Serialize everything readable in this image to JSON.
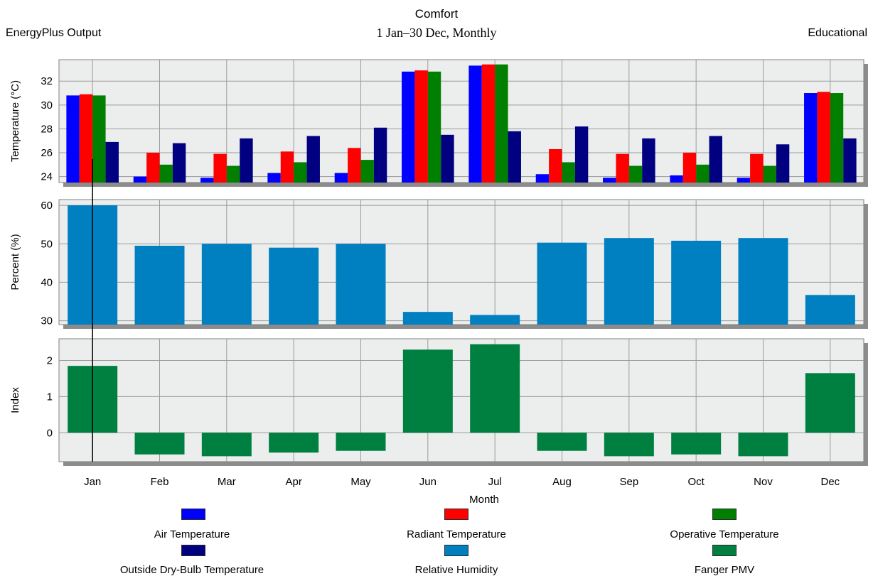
{
  "header": {
    "left": "EnergyPlus Output",
    "right": "Educational",
    "title": "Comfort",
    "subtitle": "1 Jan–30 Dec, Monthly"
  },
  "chart_data": [
    {
      "type": "bar",
      "ylabel": "Temperature (°C)",
      "ylim": [
        23.5,
        33.8
      ],
      "yticks": [
        24,
        26,
        28,
        30,
        32
      ],
      "grid": true,
      "categories": [
        "Jan",
        "Feb",
        "Mar",
        "Apr",
        "May",
        "Jun",
        "Jul",
        "Aug",
        "Sep",
        "Oct",
        "Nov",
        "Dec"
      ],
      "series": [
        {
          "name": "Air Temperature",
          "color": "#0000ff",
          "values": [
            30.8,
            24.0,
            23.9,
            24.3,
            24.3,
            32.8,
            33.3,
            24.2,
            23.9,
            24.1,
            23.9,
            31.0
          ]
        },
        {
          "name": "Radiant Temperature",
          "color": "#ff0000",
          "values": [
            30.9,
            26.0,
            25.9,
            26.1,
            26.4,
            32.9,
            33.4,
            26.3,
            25.9,
            26.0,
            25.9,
            31.1
          ]
        },
        {
          "name": "Operative Temperature",
          "color": "#007f00",
          "values": [
            30.8,
            25.0,
            24.9,
            25.2,
            25.4,
            32.8,
            33.4,
            25.2,
            24.9,
            25.0,
            24.9,
            31.0
          ]
        },
        {
          "name": "Outside Dry-Bulb Temperature",
          "color": "#000080",
          "values": [
            26.9,
            26.8,
            27.2,
            27.4,
            28.1,
            27.5,
            27.8,
            28.2,
            27.2,
            27.4,
            26.7,
            27.2
          ]
        }
      ]
    },
    {
      "type": "bar",
      "ylabel": "Percent (%)",
      "ylim": [
        29,
        61.5
      ],
      "yticks": [
        30,
        40,
        50,
        60
      ],
      "grid": true,
      "categories": [
        "Jan",
        "Feb",
        "Mar",
        "Apr",
        "May",
        "Jun",
        "Jul",
        "Aug",
        "Sep",
        "Oct",
        "Nov",
        "Dec"
      ],
      "series": [
        {
          "name": "Relative Humidity",
          "color": "#0080c0",
          "values": [
            60.0,
            49.5,
            50.0,
            49.0,
            50.0,
            32.3,
            31.5,
            50.3,
            51.5,
            50.8,
            51.5,
            36.7
          ]
        }
      ]
    },
    {
      "type": "bar",
      "ylabel": "Index",
      "ylim": [
        -0.8,
        2.6
      ],
      "yticks": [
        0,
        1,
        2
      ],
      "grid": true,
      "categories": [
        "Jan",
        "Feb",
        "Mar",
        "Apr",
        "May",
        "Jun",
        "Jul",
        "Aug",
        "Sep",
        "Oct",
        "Nov",
        "Dec"
      ],
      "xlabel": "Month",
      "series": [
        {
          "name": "Fanger PMV",
          "color": "#008040",
          "values": [
            1.85,
            -0.6,
            -0.65,
            -0.55,
            -0.5,
            2.3,
            2.45,
            -0.5,
            -0.65,
            -0.6,
            -0.65,
            1.65
          ]
        }
      ]
    }
  ],
  "legend": {
    "items": [
      {
        "label": "Air Temperature",
        "color": "#0000ff"
      },
      {
        "label": "Radiant Temperature",
        "color": "#ff0000"
      },
      {
        "label": "Operative Temperature",
        "color": "#007f00"
      },
      {
        "label": "Outside Dry-Bulb Temperature",
        "color": "#000080"
      },
      {
        "label": "Relative Humidity",
        "color": "#0080c0"
      },
      {
        "label": "Fanger PMV",
        "color": "#008040"
      }
    ]
  }
}
